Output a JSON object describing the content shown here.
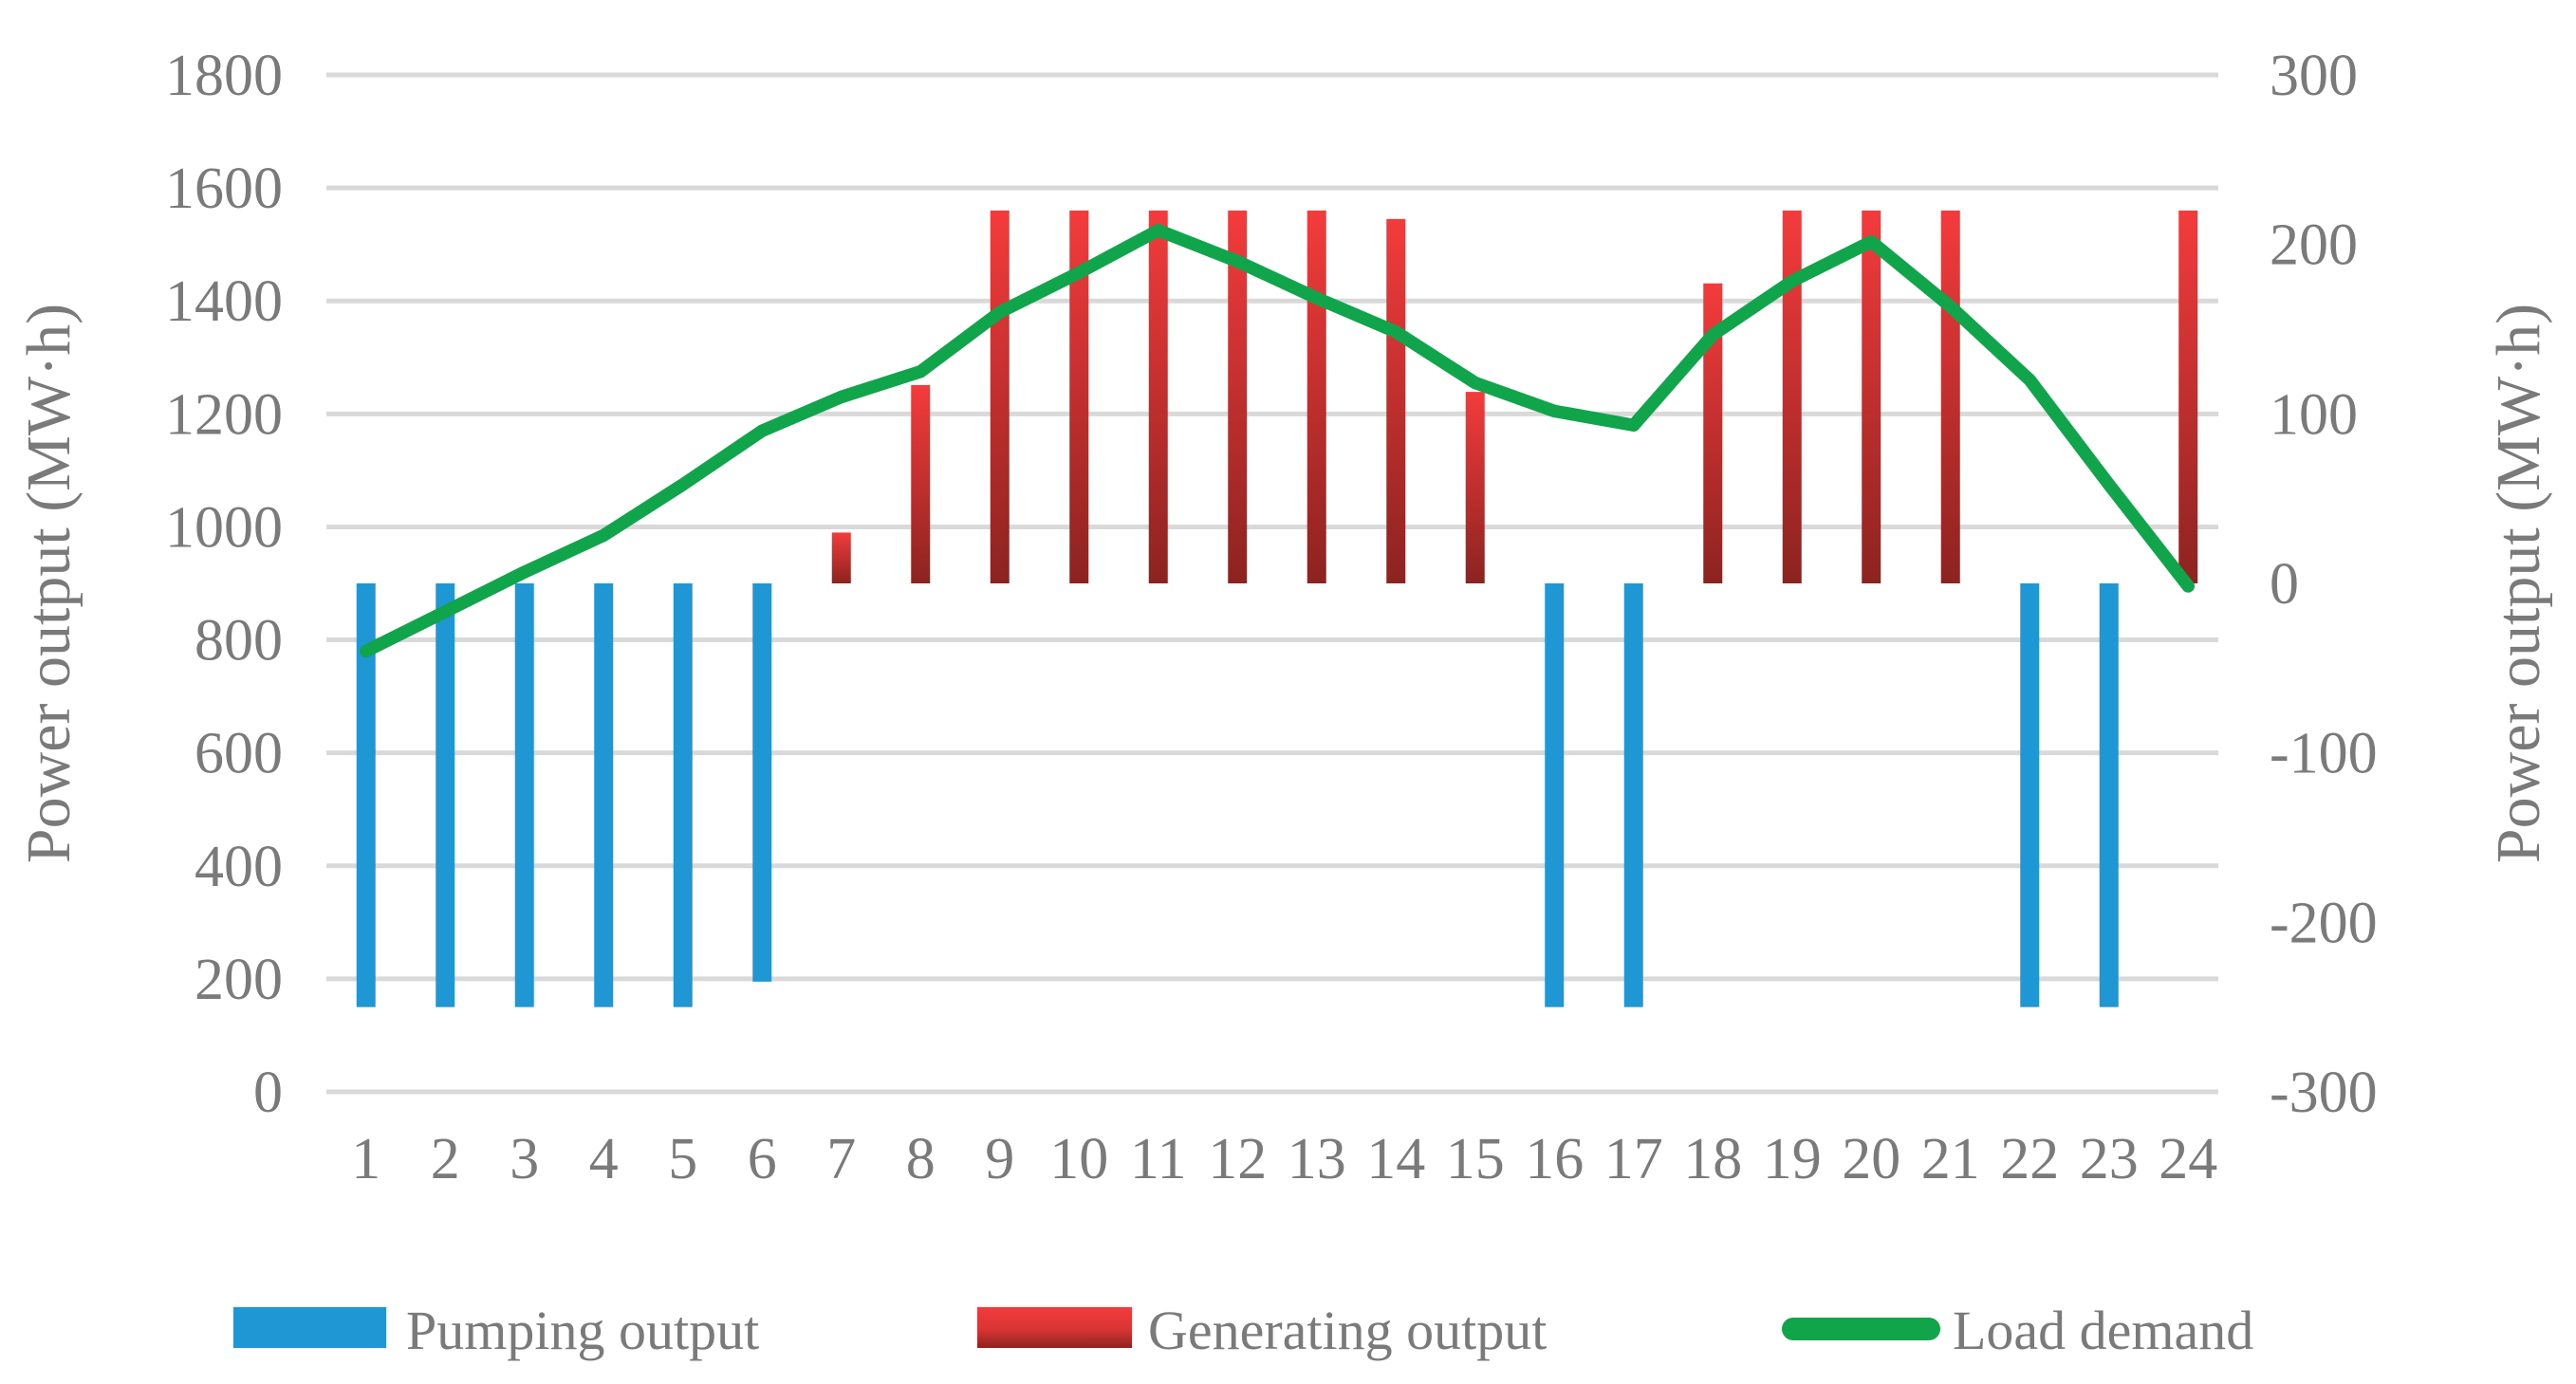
{
  "chart_data": {
    "type": "bar",
    "subtype": "combo-bar-line-dual-axis",
    "categories": [
      "1",
      "2",
      "3",
      "4",
      "5",
      "6",
      "7",
      "8",
      "9",
      "10",
      "11",
      "12",
      "13",
      "14",
      "15",
      "16",
      "17",
      "18",
      "19",
      "20",
      "21",
      "22",
      "23",
      "24"
    ],
    "series": [
      {
        "name": "Pumping output",
        "type": "bar",
        "axis": "right",
        "color": "#2097d5",
        "values": [
          -250,
          -250,
          -250,
          -250,
          -250,
          -235,
          null,
          null,
          null,
          null,
          null,
          null,
          null,
          null,
          null,
          -250,
          -250,
          null,
          null,
          null,
          null,
          -250,
          -250,
          null
        ]
      },
      {
        "name": "Generating output",
        "type": "bar",
        "axis": "right",
        "color_top": "#f43b3c",
        "color_bottom": "#8c2320",
        "values": [
          null,
          null,
          null,
          null,
          null,
          null,
          30,
          117,
          220,
          220,
          220,
          220,
          220,
          215,
          113,
          null,
          null,
          177,
          220,
          220,
          220,
          null,
          null,
          220
        ]
      },
      {
        "name": "Load demand",
        "type": "line",
        "axis": "left",
        "color": "#10a44b",
        "values": [
          780,
          850,
          920,
          985,
          1075,
          1170,
          1230,
          1275,
          1380,
          1450,
          1525,
          1470,
          1405,
          1345,
          1255,
          1205,
          1180,
          1340,
          1435,
          1505,
          1390,
          1260,
          1075,
          895
        ]
      }
    ],
    "left_axis": {
      "title": "Power output (MW·h)",
      "min": 0,
      "max": 1800,
      "step": 200
    },
    "right_axis": {
      "title": "Power output (MW·h)",
      "min": -300,
      "max": 300,
      "step": 100
    },
    "x_axis": {
      "labels": [
        "1",
        "2",
        "3",
        "4",
        "5",
        "6",
        "7",
        "8",
        "9",
        "10",
        "11",
        "12",
        "13",
        "14",
        "15",
        "16",
        "17",
        "18",
        "19",
        "20",
        "21",
        "22",
        "23",
        "24"
      ]
    },
    "grid": {
      "on": true,
      "color": "#d9d9d9"
    },
    "legend_position": "bottom"
  },
  "legend": {
    "items": [
      {
        "label": "Pumping output"
      },
      {
        "label": "Generating output"
      },
      {
        "label": "Load demand"
      }
    ]
  },
  "colors": {
    "text": "#7a7a7a",
    "gridline": "#d9d9d9",
    "pumping": "#2097d5",
    "generating_top": "#f43b3c",
    "generating_bottom": "#8c2320",
    "load": "#10a44b"
  }
}
